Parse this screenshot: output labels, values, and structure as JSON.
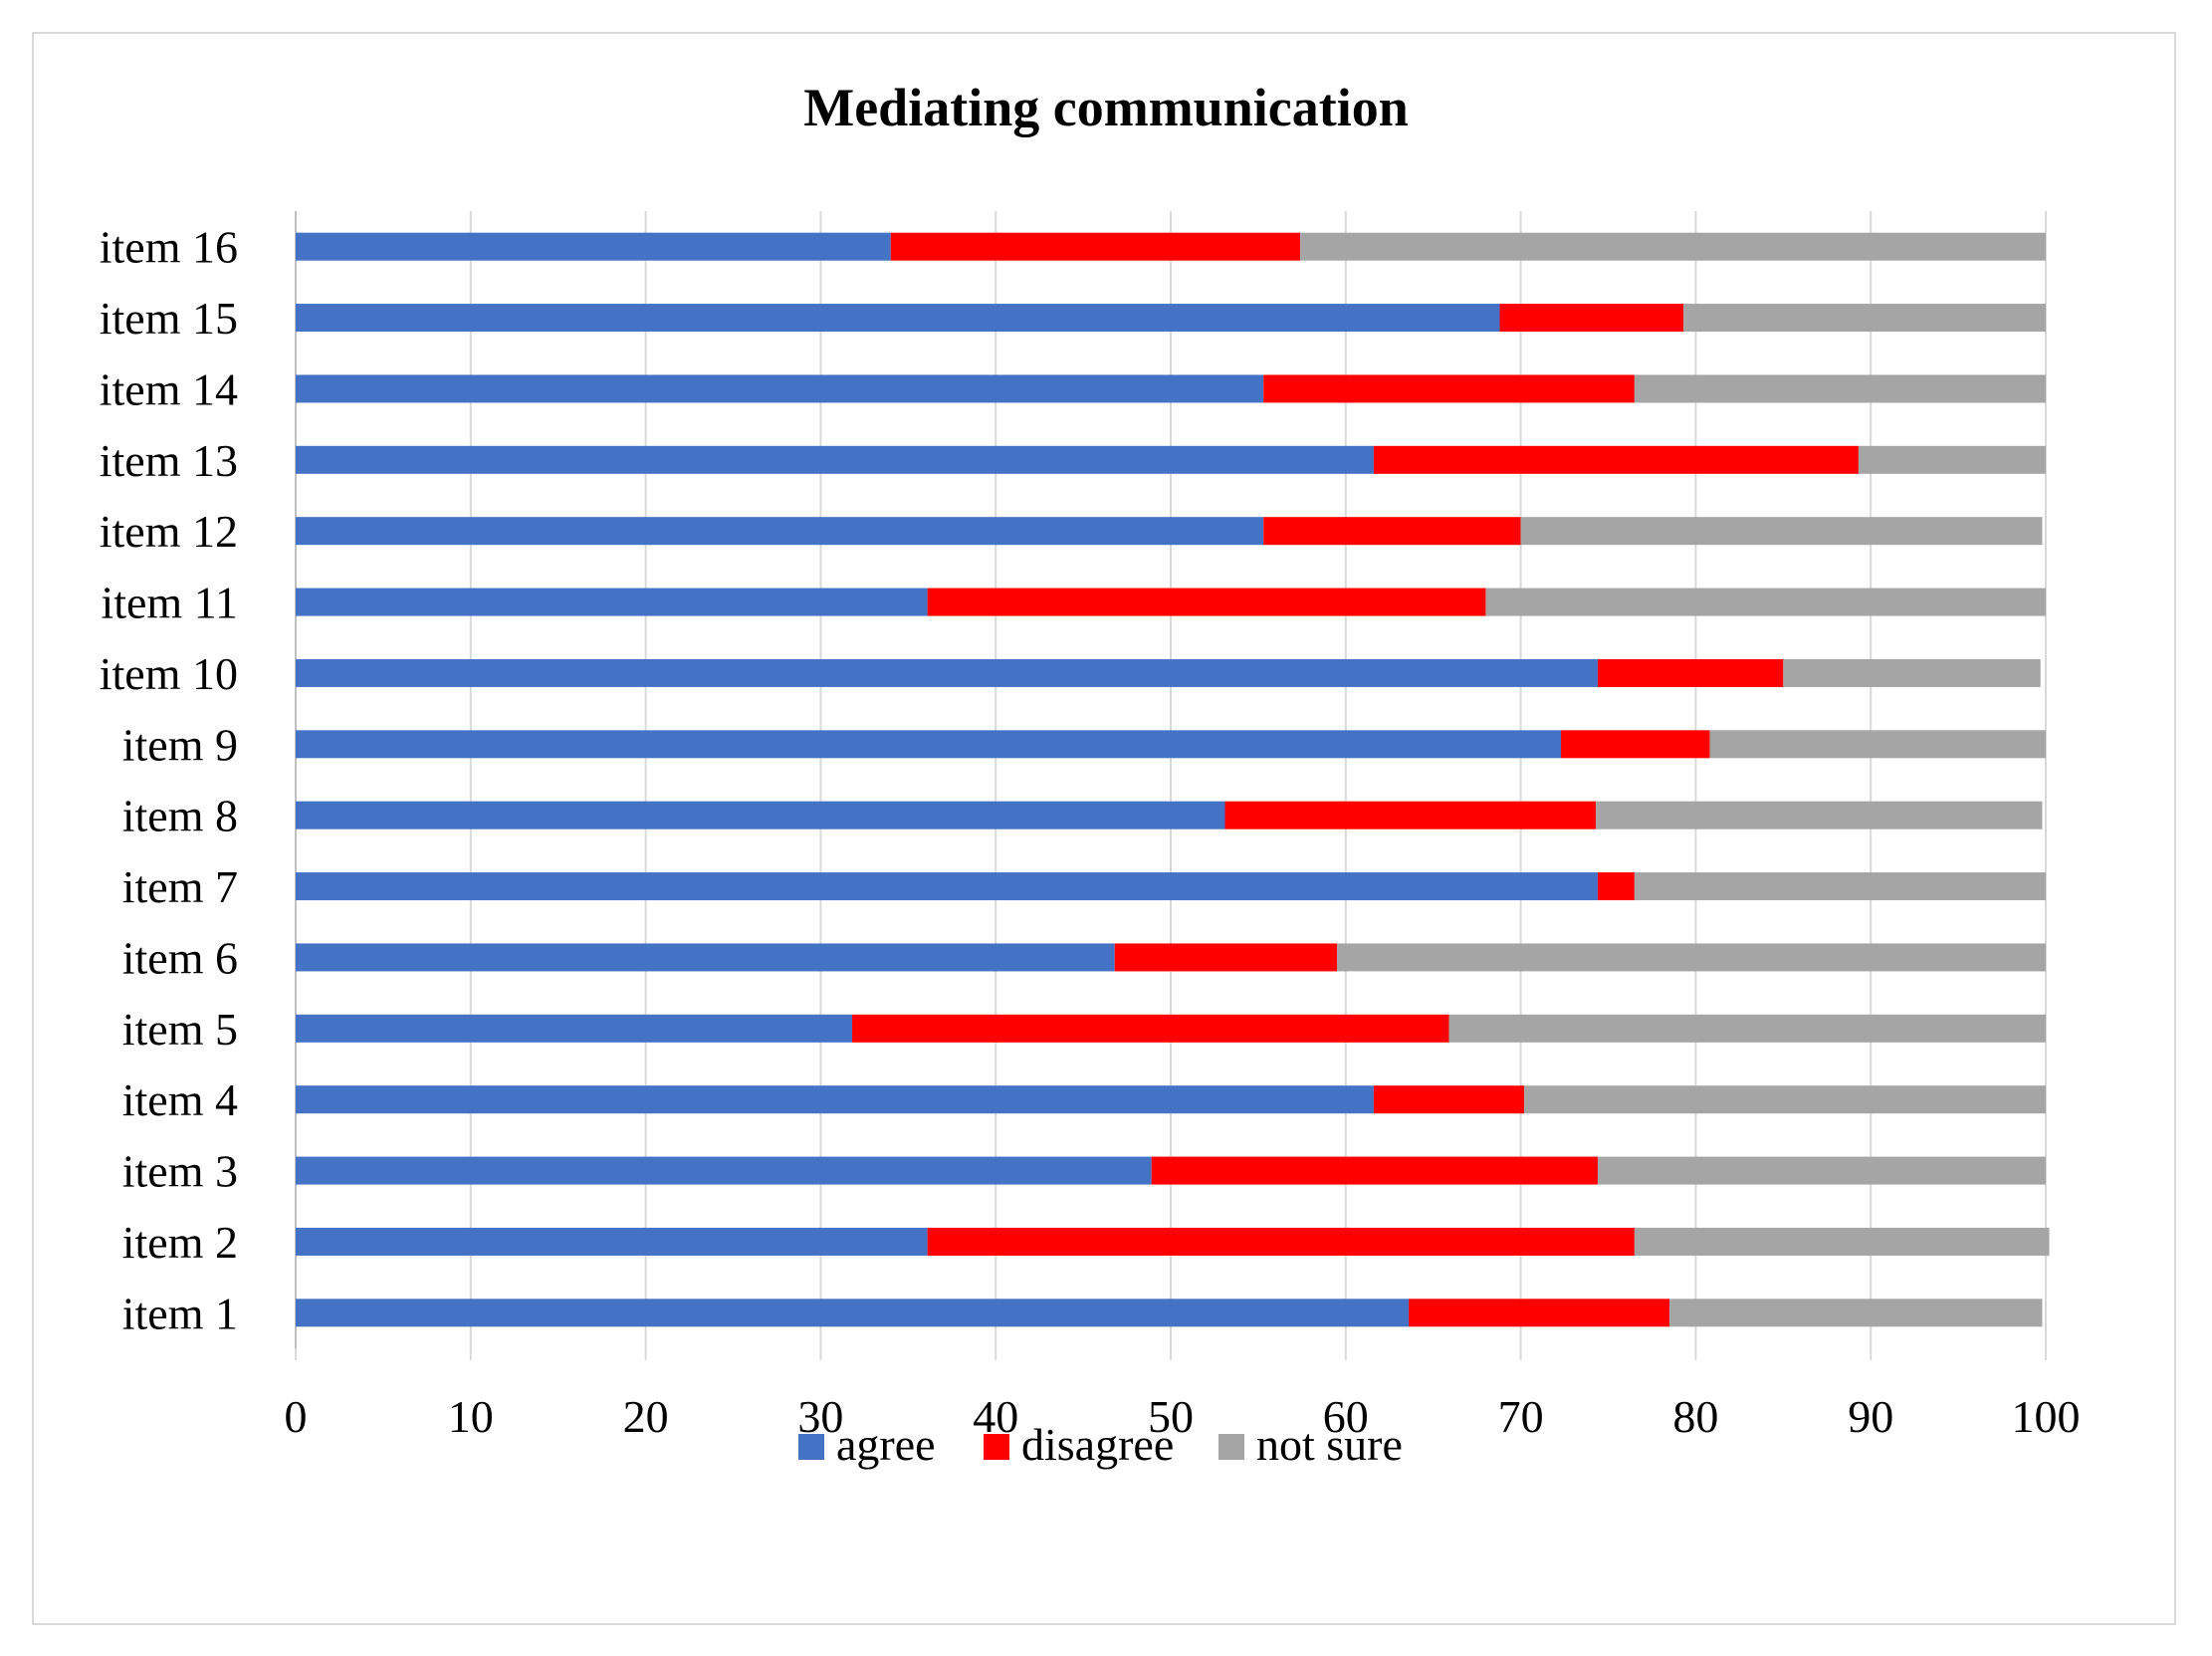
{
  "chart_data": {
    "type": "bar",
    "orientation": "horizontal",
    "stacked": true,
    "title": "Mediating communication",
    "xlabel": "",
    "ylabel": "",
    "xlim": [
      0,
      100
    ],
    "x_ticks": [
      0,
      10,
      20,
      30,
      40,
      50,
      60,
      70,
      80,
      90,
      100
    ],
    "grid": true,
    "legend": "bottom",
    "categories": [
      "item 1",
      "item 2",
      "item 3",
      "item 4",
      "item 5",
      "item 6",
      "item 7",
      "item 8",
      "item 9",
      "item 10",
      "item 11",
      "item 12",
      "item 13",
      "item 14",
      "item 15",
      "item 16"
    ],
    "series": [
      {
        "name": "agree",
        "color": "#4472c4",
        "values": [
          63.6,
          36.1,
          48.9,
          61.6,
          31.8,
          46.8,
          74.4,
          53.1,
          72.3,
          74.4,
          36.1,
          55.3,
          61.6,
          55.3,
          68.8,
          34.0
        ]
      },
      {
        "name": "disagree",
        "color": "#ff0000",
        "values": [
          14.9,
          40.4,
          25.5,
          8.6,
          34.1,
          12.7,
          2.1,
          21.2,
          8.5,
          10.6,
          31.9,
          14.7,
          27.7,
          21.2,
          10.5,
          23.4
        ]
      },
      {
        "name": "not sure",
        "color": "#a5a5a5",
        "values": [
          21.3,
          23.7,
          25.6,
          29.8,
          34.1,
          40.5,
          23.5,
          25.5,
          19.2,
          14.7,
          32.0,
          29.8,
          10.7,
          23.5,
          20.7,
          42.6
        ]
      }
    ]
  }
}
